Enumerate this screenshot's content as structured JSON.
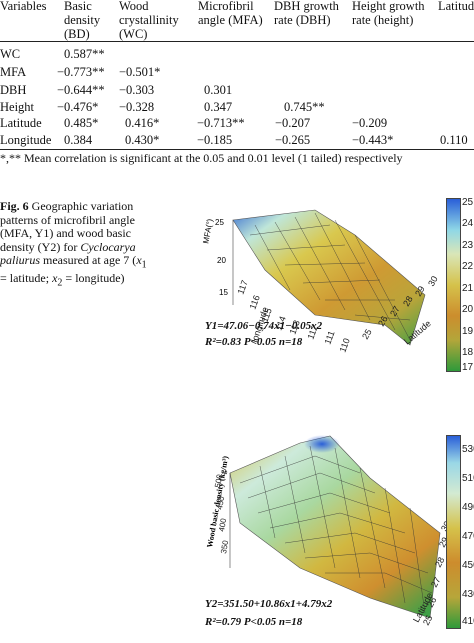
{
  "table": {
    "headers": [
      {
        "text": "Variables"
      },
      {
        "text": "Basic\ndensity\n(BD)"
      },
      {
        "text": "Wood\ncrystallinity\n(WC)"
      },
      {
        "text": "Microfibril\nangle (MFA)"
      },
      {
        "text": "DBH growth\nrate (DBH)"
      },
      {
        "text": "Height growth\nrate (height)"
      },
      {
        "text": "Latitude"
      }
    ],
    "rows": [
      {
        "label": "WC",
        "cells": [
          "0.587**",
          "",
          "",
          "",
          "",
          ""
        ]
      },
      {
        "label": "MFA",
        "cells": [
          "−0.773**",
          "−0.501*",
          "",
          "",
          "",
          ""
        ]
      },
      {
        "label": "DBH",
        "cells": [
          "−0.644**",
          "−0.303",
          "0.301",
          "",
          "",
          ""
        ]
      },
      {
        "label": "Height",
        "cells": [
          "−0.476*",
          "−0.328",
          "0.347",
          "0.745**",
          "",
          ""
        ]
      },
      {
        "label": "Latitude",
        "cells": [
          "0.485*",
          "0.416*",
          "−0.713**",
          "−0.207",
          "−0.209",
          ""
        ]
      },
      {
        "label": "Longitude",
        "cells": [
          "0.384",
          "0.430*",
          "−0.185",
          "−0.265",
          "−0.443*",
          "0.110"
        ]
      }
    ],
    "footnote": "*,** Mean correlation is significant at the 0.05 and 0.01 level (1 tailed) respectively"
  },
  "figure": {
    "label": "Fig. 6",
    "caption": "Geographic variation patterns of microfibril angle (MFA, Y1) and wood basic density (Y2) for Cyclocarya paliurus measured at age 7 (x1 = latitude; x2 = longitude)",
    "top_plot": {
      "zlabel": "MFA(°)",
      "z_ticks": [
        "25",
        "20",
        "15"
      ],
      "x_label": "Latitude",
      "x_ticks": [
        "25",
        "26",
        "27",
        "28",
        "29",
        "30"
      ],
      "y_label": "longitude",
      "y_ticks": [
        "110",
        "111",
        "112",
        "113",
        "114",
        "115",
        "116",
        "117"
      ],
      "colorbar_ticks": [
        "25",
        "24",
        "23",
        "22",
        "21",
        "20",
        "19",
        "18",
        "17"
      ],
      "equation": "Y1=47.06−0.74x1−0.05x2",
      "stats": "R²=0.83   P<0.05   n=18"
    },
    "bottom_plot": {
      "zlabel": "Wood basic density (kg/m³)",
      "z_ticks": [
        "500",
        "450",
        "400",
        "350"
      ],
      "x_label": "Latitude",
      "x_ticks": [
        "25",
        "26",
        "27",
        "28",
        "29",
        "30"
      ],
      "colorbar_ticks": [
        "530",
        "510",
        "490",
        "470",
        "450",
        "430",
        "410"
      ],
      "equation": "Y2=351.50+10.86x1+4.79x2",
      "stats": "R²=0.79   P<0.05   n=18"
    },
    "colors": {
      "high": "#2a5fd8",
      "mid_high": "#bfe8e0",
      "mid": "#d7c24a",
      "mid_low": "#c98a2a",
      "low": "#2f9a3a"
    }
  }
}
